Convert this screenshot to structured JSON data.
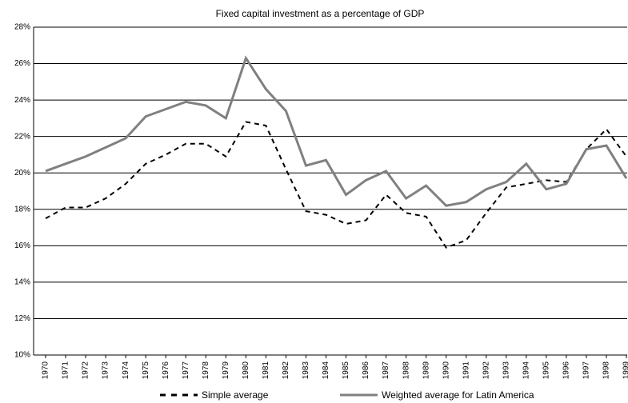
{
  "chart_data": {
    "type": "line",
    "title": "Fixed capital investment as a percentage of GDP",
    "categories": [
      "1970",
      "1971",
      "1972",
      "1973",
      "1974",
      "1975",
      "1976",
      "1977",
      "1978",
      "1979",
      "1980",
      "1981",
      "1982",
      "1983",
      "1984",
      "1985",
      "1986",
      "1987",
      "1988",
      "1989",
      "1990",
      "1991",
      "1992",
      "1993",
      "1994",
      "1995",
      "1996",
      "1997",
      "1998",
      "1999"
    ],
    "series": [
      {
        "name": "Simple average",
        "color": "#000000",
        "dash": true,
        "values": [
          17.5,
          18.1,
          18.1,
          18.6,
          19.4,
          20.5,
          21.0,
          21.6,
          21.6,
          20.9,
          22.8,
          22.6,
          20.2,
          17.9,
          17.7,
          17.2,
          17.4,
          18.8,
          17.8,
          17.6,
          15.9,
          16.3,
          17.8,
          19.2,
          19.4,
          19.6,
          19.5,
          21.3,
          22.4,
          20.9
        ]
      },
      {
        "name": "Weighted average for Latin America",
        "color": "#808080",
        "dash": false,
        "values": [
          20.1,
          20.5,
          20.9,
          21.4,
          21.9,
          23.1,
          23.5,
          23.9,
          23.7,
          23.0,
          26.3,
          24.6,
          23.4,
          20.4,
          20.7,
          18.8,
          19.6,
          20.1,
          18.6,
          19.3,
          18.2,
          18.4,
          19.1,
          19.5,
          20.5,
          19.1,
          19.4,
          21.3,
          21.5,
          19.7
        ]
      }
    ],
    "ylim": [
      10,
      28
    ],
    "yticks": [
      {
        "value": 10,
        "label": "10%"
      },
      {
        "value": 12,
        "label": "12%"
      },
      {
        "value": 14,
        "label": "14%"
      },
      {
        "value": 16,
        "label": "16%"
      },
      {
        "value": 18,
        "label": "18%"
      },
      {
        "value": 20,
        "label": "20%"
      },
      {
        "value": 22,
        "label": "22%"
      },
      {
        "value": 24,
        "label": "24%"
      },
      {
        "value": 26,
        "label": "26%"
      },
      {
        "value": 28,
        "label": "28%"
      }
    ],
    "grid": true,
    "legend": "bottom"
  }
}
